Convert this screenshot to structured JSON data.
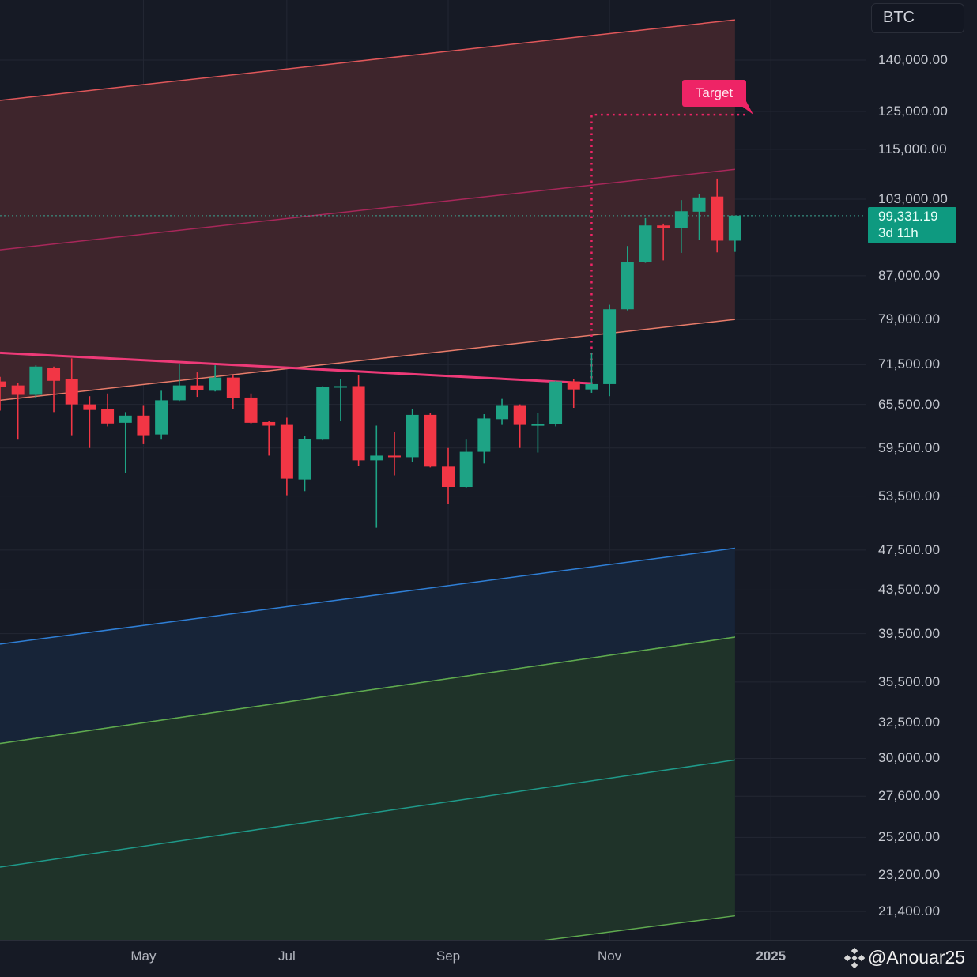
{
  "chart_data": {
    "type": "candlestick",
    "symbol": "BTC",
    "interval": "weekly",
    "y_scale": "log",
    "ylim": [
      19000,
      160000
    ],
    "grid": true,
    "colors": {
      "up": "#1ea385",
      "down": "#f23645",
      "background": "#161a25",
      "grid": "#232733",
      "price_tag": "#0e9a80",
      "target": "#ee2466"
    },
    "y_ticks": [
      {
        "value": 140000,
        "label": "140,000.00"
      },
      {
        "value": 125000,
        "label": "125,000.00"
      },
      {
        "value": 115000,
        "label": "115,000.00"
      },
      {
        "value": 103000,
        "label": "103,000.00"
      },
      {
        "value": 87000,
        "label": "87,000.00"
      },
      {
        "value": 79000,
        "label": "79,000.00"
      },
      {
        "value": 71500,
        "label": "71,500.00"
      },
      {
        "value": 65500,
        "label": "65,500.00"
      },
      {
        "value": 59500,
        "label": "59,500.00"
      },
      {
        "value": 53500,
        "label": "53,500.00"
      },
      {
        "value": 47500,
        "label": "47,500.00"
      },
      {
        "value": 43500,
        "label": "43,500.00"
      },
      {
        "value": 39500,
        "label": "39,500.00"
      },
      {
        "value": 35500,
        "label": "35,500.00"
      },
      {
        "value": 32500,
        "label": "32,500.00"
      },
      {
        "value": 30000,
        "label": "30,000.00"
      },
      {
        "value": 27600,
        "label": "27,600.00"
      },
      {
        "value": 25200,
        "label": "25,200.00"
      },
      {
        "value": 23200,
        "label": "23,200.00"
      },
      {
        "value": 21400,
        "label": "21,400.00"
      }
    ],
    "x_ticks": [
      {
        "date": "2024-05-06",
        "label": "May",
        "year": false
      },
      {
        "date": "2024-07-01",
        "label": "Jul",
        "year": false
      },
      {
        "date": "2024-09-02",
        "label": "Sep",
        "year": false
      },
      {
        "date": "2024-11-04",
        "label": "Nov",
        "year": false
      },
      {
        "date": "2025-01-06",
        "label": "2025",
        "year": true
      }
    ],
    "candles": [
      {
        "date": "2024-03-11",
        "o": 68900,
        "h": 69600,
        "l": 64600,
        "c": 68100
      },
      {
        "date": "2024-03-18",
        "o": 68300,
        "h": 68700,
        "l": 60600,
        "c": 66900
      },
      {
        "date": "2024-03-25",
        "o": 66900,
        "h": 71400,
        "l": 66400,
        "c": 71200
      },
      {
        "date": "2024-04-01",
        "o": 71000,
        "h": 71200,
        "l": 64400,
        "c": 69000
      },
      {
        "date": "2024-04-08",
        "o": 69300,
        "h": 72500,
        "l": 61200,
        "c": 65500
      },
      {
        "date": "2024-04-15",
        "o": 65500,
        "h": 66700,
        "l": 59500,
        "c": 64700
      },
      {
        "date": "2024-04-22",
        "o": 64800,
        "h": 67100,
        "l": 62400,
        "c": 62800
      },
      {
        "date": "2024-04-29",
        "o": 62900,
        "h": 64400,
        "l": 56300,
        "c": 63900
      },
      {
        "date": "2024-05-06",
        "o": 63900,
        "h": 65400,
        "l": 60000,
        "c": 61200
      },
      {
        "date": "2024-05-13",
        "o": 61300,
        "h": 67500,
        "l": 60600,
        "c": 66100
      },
      {
        "date": "2024-05-20",
        "o": 66100,
        "h": 71600,
        "l": 66000,
        "c": 68300
      },
      {
        "date": "2024-05-27",
        "o": 68300,
        "h": 70300,
        "l": 66600,
        "c": 67600
      },
      {
        "date": "2024-06-03",
        "o": 67500,
        "h": 71400,
        "l": 67400,
        "c": 69500
      },
      {
        "date": "2024-06-10",
        "o": 69500,
        "h": 69900,
        "l": 64800,
        "c": 66400
      },
      {
        "date": "2024-06-17",
        "o": 66500,
        "h": 67100,
        "l": 62800,
        "c": 62900
      },
      {
        "date": "2024-06-24",
        "o": 63000,
        "h": 63100,
        "l": 58500,
        "c": 62500
      },
      {
        "date": "2024-07-01",
        "o": 62600,
        "h": 63600,
        "l": 53600,
        "c": 55600
      },
      {
        "date": "2024-07-08",
        "o": 55500,
        "h": 61100,
        "l": 54100,
        "c": 60700
      },
      {
        "date": "2024-07-15",
        "o": 60600,
        "h": 68200,
        "l": 60500,
        "c": 68100
      },
      {
        "date": "2024-07-22",
        "o": 68000,
        "h": 69300,
        "l": 63100,
        "c": 68200
      },
      {
        "date": "2024-07-29",
        "o": 68200,
        "h": 69900,
        "l": 57200,
        "c": 57900
      },
      {
        "date": "2024-08-05",
        "o": 57900,
        "h": 62500,
        "l": 49900,
        "c": 58500
      },
      {
        "date": "2024-08-12",
        "o": 58500,
        "h": 61600,
        "l": 56000,
        "c": 58300
      },
      {
        "date": "2024-08-19",
        "o": 58300,
        "h": 64800,
        "l": 57700,
        "c": 64000
      },
      {
        "date": "2024-08-26",
        "o": 64000,
        "h": 64300,
        "l": 57000,
        "c": 57100
      },
      {
        "date": "2024-09-02",
        "o": 57100,
        "h": 59500,
        "l": 52600,
        "c": 54600
      },
      {
        "date": "2024-09-09",
        "o": 54600,
        "h": 60600,
        "l": 54500,
        "c": 59000
      },
      {
        "date": "2024-09-16",
        "o": 59000,
        "h": 64100,
        "l": 57500,
        "c": 63500
      },
      {
        "date": "2024-09-23",
        "o": 63400,
        "h": 66300,
        "l": 62600,
        "c": 65400
      },
      {
        "date": "2024-09-30",
        "o": 65400,
        "h": 65500,
        "l": 59500,
        "c": 62600
      },
      {
        "date": "2024-10-07",
        "o": 62600,
        "h": 64300,
        "l": 58900,
        "c": 62700
      },
      {
        "date": "2024-10-14",
        "o": 62700,
        "h": 69000,
        "l": 62400,
        "c": 68900
      },
      {
        "date": "2024-10-21",
        "o": 68900,
        "h": 69300,
        "l": 65000,
        "c": 67700
      },
      {
        "date": "2024-10-28",
        "o": 67700,
        "h": 73400,
        "l": 67200,
        "c": 68500
      },
      {
        "date": "2024-11-04",
        "o": 68500,
        "h": 81600,
        "l": 66700,
        "c": 80800
      },
      {
        "date": "2024-11-11",
        "o": 80800,
        "h": 92900,
        "l": 80600,
        "c": 89700
      },
      {
        "date": "2024-11-18",
        "o": 89700,
        "h": 98800,
        "l": 89500,
        "c": 97200
      },
      {
        "date": "2024-11-25",
        "o": 97200,
        "h": 97600,
        "l": 90000,
        "c": 96600
      },
      {
        "date": "2024-12-02",
        "o": 96600,
        "h": 102800,
        "l": 91500,
        "c": 100300
      },
      {
        "date": "2024-12-09",
        "o": 100200,
        "h": 104100,
        "l": 94100,
        "c": 103400
      },
      {
        "date": "2024-12-16",
        "o": 103600,
        "h": 107800,
        "l": 91600,
        "c": 94000
      },
      {
        "date": "2024-12-23",
        "o": 94000,
        "h": 99331.19,
        "l": 91700,
        "c": 99331.19
      }
    ],
    "bands": [
      {
        "upper": [
          [
            "2024-03-11",
            128100
          ],
          [
            "2024-12-23",
            153000
          ]
        ],
        "lower": [
          [
            "2024-03-11",
            66100
          ],
          [
            "2024-12-23",
            79000
          ]
        ],
        "fill": "#3e252c",
        "upper_color": "#e0575a",
        "lower_color": "#e87c6a"
      },
      {
        "upper": [
          [
            "2024-03-11",
            38600
          ],
          [
            "2024-12-23",
            47700
          ]
        ],
        "lower": [
          [
            "2024-03-11",
            31000
          ],
          [
            "2024-12-23",
            39200
          ]
        ],
        "fill": "#172438",
        "upper_color": "#2f7fd6",
        "lower_color": "#5faa4f"
      },
      {
        "upper": [
          [
            "2024-03-11",
            31000
          ],
          [
            "2024-12-23",
            39200
          ]
        ],
        "lower": [
          [
            "2024-03-11",
            17200
          ],
          [
            "2024-12-23",
            21200
          ]
        ],
        "fill": "#1f3329",
        "upper_color": "#5faa4f",
        "lower_color": "#5faa4f"
      }
    ],
    "lines": [
      {
        "points": [
          [
            "2024-03-11",
            92100
          ],
          [
            "2024-12-23",
            110000
          ]
        ],
        "color": "#a8275a"
      },
      {
        "points": [
          [
            "2024-03-11",
            23600
          ],
          [
            "2024-12-23",
            29900
          ]
        ],
        "color": "#1f9a8a"
      },
      {
        "points": [
          [
            "2024-03-11",
            73400
          ],
          [
            "2024-10-28",
            68600
          ]
        ],
        "color": "#ee3a78",
        "width": 3
      }
    ],
    "target": {
      "label": "Target",
      "from": [
        "2024-10-28",
        68500
      ],
      "corner": [
        "2024-10-28",
        124100
      ],
      "to": [
        "2024-12-28",
        124100
      ],
      "color": "#ee2466"
    },
    "last_price": {
      "value": 99331.19,
      "label": "99,331.19",
      "countdown": "3d 11h"
    }
  },
  "watermark": "@Anouar25"
}
